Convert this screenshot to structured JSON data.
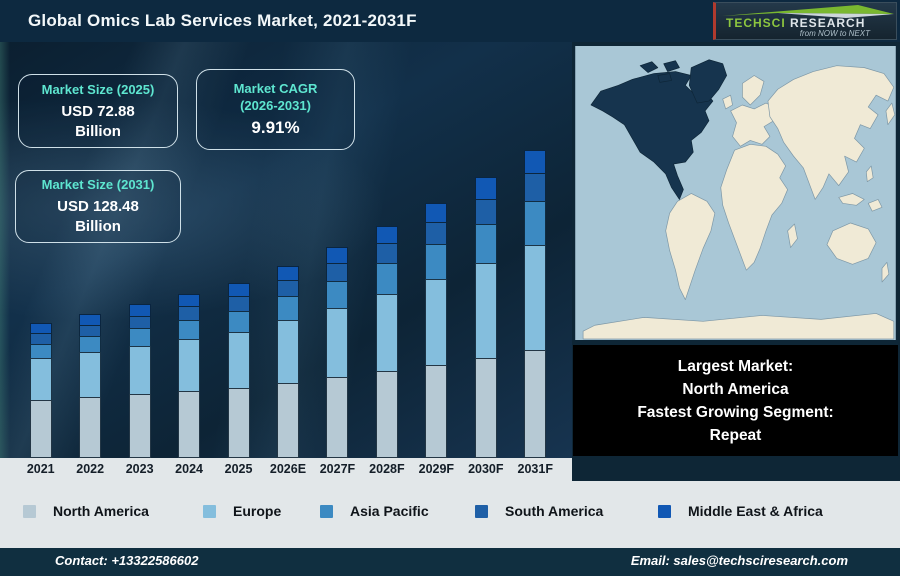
{
  "header": {
    "title": "Global Omics Lab Services Market, 2021-2031F",
    "logo": {
      "brand_primary": "TechSci",
      "brand_secondary": "Research",
      "tagline": "from NOW to NEXT"
    }
  },
  "callouts": {
    "size_2025": {
      "title": "Market Size (2025)",
      "value": "USD 72.88",
      "unit": "Billion"
    },
    "cagr": {
      "title_line1": "Market CAGR",
      "title_line2": "(2026-2031)",
      "value": "9.91%"
    },
    "size_2031": {
      "title": "Market Size (2031)",
      "value": "USD 128.48",
      "unit": "Billion"
    }
  },
  "info_box": {
    "lines": [
      "Largest Market:",
      "North America",
      "Fastest Growing Segment:",
      "Repeat"
    ]
  },
  "map": {
    "highlight_region": "North America",
    "highlight_color": "#16344e",
    "land_color": "#f0ead6",
    "ocean_color": "#a9c7d6"
  },
  "chart_data": {
    "type": "bar",
    "stacked": true,
    "title": "Global Omics Lab Services Market, 2021-2031F",
    "unit": "USD Billion",
    "legend_position": "bottom",
    "grid": false,
    "categories": [
      "2021",
      "2022",
      "2023",
      "2024",
      "2025",
      "2026E",
      "2027F",
      "2028F",
      "2029F",
      "2030F",
      "2031F"
    ],
    "series": [
      {
        "name": "North America",
        "color": "#b6c9d4",
        "values": [
          24.39,
          25.53,
          26.69,
          27.9,
          29.15,
          31.36,
          33.72,
          36.24,
          38.93,
          41.79,
          44.84
        ]
      },
      {
        "name": "Europe",
        "color": "#84bedd",
        "values": [
          17.2,
          18.58,
          20.06,
          21.66,
          23.38,
          25.99,
          28.89,
          32.12,
          35.69,
          39.66,
          44.07
        ]
      },
      {
        "name": "Asia Pacific",
        "color": "#3c8ac2",
        "values": [
          6.13,
          6.74,
          7.4,
          8.12,
          8.91,
          10.05,
          11.34,
          12.78,
          14.4,
          16.21,
          18.24
        ]
      },
      {
        "name": "South America",
        "color": "#1e5fa6",
        "values": [
          4.38,
          4.75,
          5.13,
          5.55,
          6.01,
          6.69,
          7.45,
          8.29,
          9.23,
          10.28,
          11.43
        ]
      },
      {
        "name": "Middle East & Africa",
        "color": "#1158b4",
        "values": [
          4.1,
          4.4,
          4.72,
          5.07,
          5.44,
          6.01,
          6.64,
          7.34,
          8.1,
          8.95,
          9.89
        ]
      }
    ],
    "totals": [
      56.2,
      60.0,
      64.0,
      68.3,
      72.88,
      80.1,
      88.04,
      96.77,
      106.36,
      116.9,
      128.48
    ],
    "annotations": {
      "market_size_2025_usd_billion": 72.88,
      "market_size_2031_usd_billion": 128.48,
      "cagr_2026_2031_percent": 9.91
    }
  },
  "footer": {
    "contact": "Contact: +13322586602",
    "email": "Email: sales@techsciresearch.com"
  }
}
